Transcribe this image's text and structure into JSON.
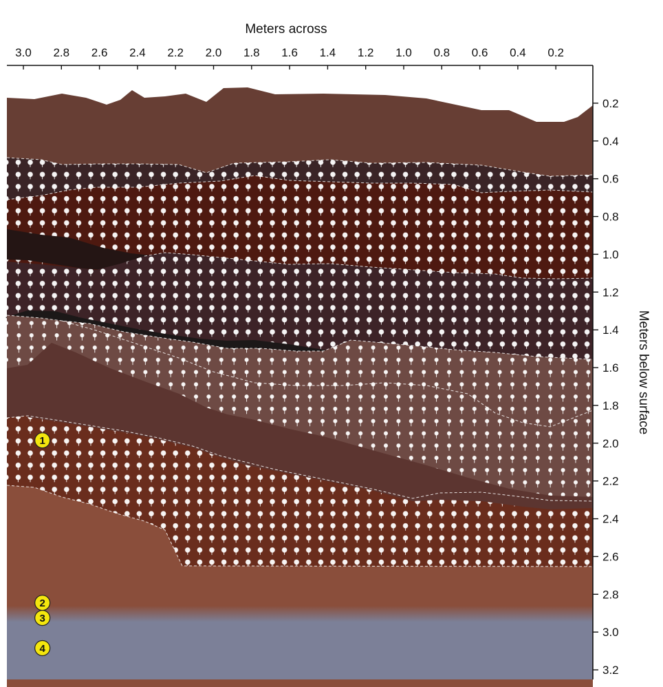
{
  "figure": {
    "x_axis": {
      "title": "Meters across",
      "ticks": [
        "3.0",
        "2.8",
        "2.6",
        "2.4",
        "2.2",
        "2.0",
        "1.8",
        "1.6",
        "1.4",
        "1.2",
        "1.0",
        "0.8",
        "0.6",
        "0.4",
        "0.2"
      ],
      "range": [
        0,
        3.05
      ],
      "direction": "decreasing left to right"
    },
    "y_axis": {
      "title": "Meters below surface",
      "ticks": [
        "0.2",
        "0.4",
        "0.6",
        "0.8",
        "1.0",
        "1.2",
        "1.4",
        "1.6",
        "1.8",
        "2.0",
        "2.2",
        "2.4",
        "2.6",
        "2.8",
        "3.0",
        "3.2"
      ],
      "range": [
        0,
        3.2
      ],
      "direction": "depth increases downward"
    },
    "colors": {
      "topsoil": "#673e34",
      "dark_dotted": "#3a2426",
      "reddish_dotted": "#4e1910",
      "black_lens": "#241514",
      "brown_dotted": "#3d2327",
      "charcoal": "#1c1818",
      "light_dotted": "#6e4a44",
      "mid_brown": "#5c3530",
      "red_dotted": "#6a2d1d",
      "lower_brown": "#8a4e3b",
      "bedrock": "#7c8098",
      "marker_fill": "#f4e60e"
    },
    "markers": [
      {
        "label": "1",
        "x_m": 2.9,
        "depth_m": 1.985
      },
      {
        "label": "2",
        "x_m": 2.9,
        "depth_m": 2.845
      },
      {
        "label": "3",
        "x_m": 2.9,
        "depth_m": 2.925
      },
      {
        "label": "4",
        "x_m": 2.9,
        "depth_m": 3.085
      }
    ]
  }
}
